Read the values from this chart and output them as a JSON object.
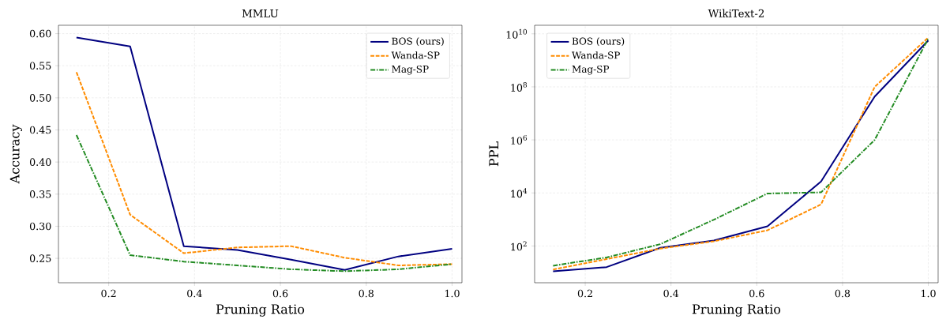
{
  "chart_data": [
    {
      "type": "line",
      "title": "MMLU",
      "xlabel": "Pruning Ratio",
      "ylabel": "Accuracy",
      "x": [
        0.125,
        0.25,
        0.375,
        0.5,
        0.625,
        0.75,
        0.875,
        1.0
      ],
      "series": [
        {
          "name": "BOS (ours)",
          "color": "#000080",
          "line_style": "solid",
          "values": [
            0.594,
            0.58,
            0.269,
            0.263,
            0.248,
            0.232,
            0.253,
            0.265
          ]
        },
        {
          "name": "Wanda-SP",
          "color": "#ff8c00",
          "line_style": "dashed",
          "values": [
            0.54,
            0.318,
            0.258,
            0.267,
            0.269,
            0.251,
            0.239,
            0.241
          ]
        },
        {
          "name": "Mag-SP",
          "color": "#228b22",
          "line_style": "dashdot",
          "values": [
            0.442,
            0.255,
            0.245,
            0.239,
            0.233,
            0.23,
            0.233,
            0.241
          ]
        }
      ],
      "xlim": [
        0.083,
        1.023
      ],
      "ylim": [
        0.212,
        0.613
      ],
      "xticks": [
        0.2,
        0.4,
        0.6,
        0.8,
        {
          "value": 1.0,
          "label": "1.0"
        }
      ],
      "yticks": [
        0.25,
        {
          "value": 0.3,
          "label": "0.30"
        },
        0.35,
        {
          "value": 0.4,
          "label": "0.40"
        },
        0.45,
        {
          "value": 0.5,
          "label": "0.50"
        },
        0.55,
        {
          "value": 0.6,
          "label": "0.60"
        }
      ],
      "grid": true,
      "legend": "top right"
    },
    {
      "type": "line",
      "title": "WikiText-2",
      "xlabel": "Pruning Ratio",
      "ylabel": "PPL",
      "x": [
        0.125,
        0.25,
        0.375,
        0.5,
        0.625,
        0.75,
        0.875,
        1.0
      ],
      "series": [
        {
          "name": "BOS (ours)",
          "color": "#000080",
          "line_style": "solid",
          "values": [
            11,
            16,
            85,
            160,
            550,
            27000,
            43000000,
            5600000000
          ]
        },
        {
          "name": "Wanda-SP",
          "color": "#ff8c00",
          "line_style": "dashed",
          "values": [
            13,
            32,
            80,
            150,
            390,
            3700,
            100000000,
            7200000000
          ]
        },
        {
          "name": "Mag-SP",
          "color": "#228b22",
          "line_style": "dashdot",
          "values": [
            18,
            37,
            117,
            980,
            9500,
            10500,
            1000000,
            6600000000
          ]
        }
      ],
      "xlim": [
        0.082,
        1.023
      ],
      "ylim": [
        4.1,
        21000000000
      ],
      "xticks": [
        0.2,
        0.4,
        0.6,
        0.8,
        {
          "value": 1.0,
          "label": "1.0"
        }
      ],
      "yticks": [
        {
          "value": 100,
          "label": "10$^{2}$"
        },
        {
          "value": 10000,
          "label": "10$^{4}$"
        },
        {
          "value": 1000000,
          "label": "10$^{6}$"
        },
        {
          "value": 100000000,
          "label": "10$^{8}$"
        },
        {
          "value": 10000000000,
          "label": "10$^{10}$"
        }
      ],
      "log": "y",
      "grid": true,
      "legend": "top left"
    }
  ]
}
